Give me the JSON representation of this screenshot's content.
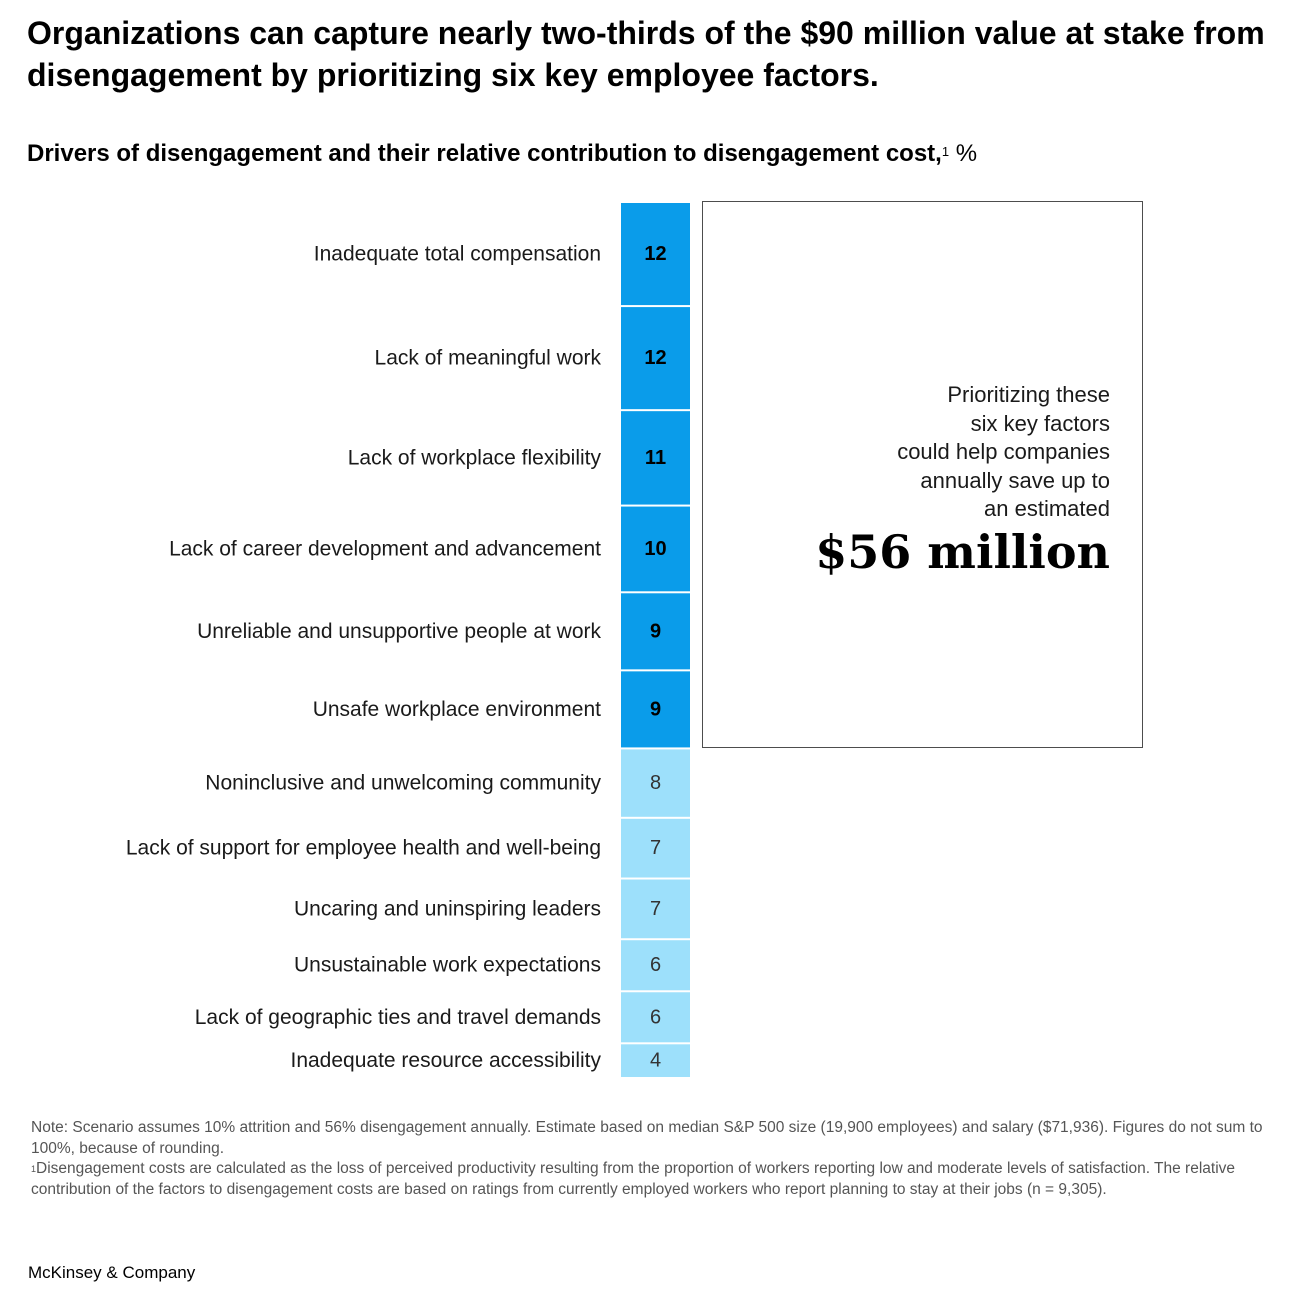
{
  "title": "Organizations can capture nearly two-thirds of the $90 million value at stake from disengagement by prioritizing six key employee factors.",
  "subtitle": {
    "text": "Drivers of disengagement and their relative contribution to disengagement cost,",
    "footnote_marker": "1",
    "unit": "%"
  },
  "chart_data": {
    "type": "bar",
    "orientation": "stacked-vertical",
    "categories": [
      "Inadequate total compensation",
      "Lack of meaningful work",
      "Lack of workplace flexibility",
      "Lack of career development and advancement",
      "Unreliable and unsupportive people at work",
      "Unsafe workplace environment",
      "Noninclusive and unwelcoming community",
      "Lack of support for employee health and well-being",
      "Uncaring and uninspiring leaders",
      "Unsustainable work expectations",
      "Lack of geographic ties and travel demands",
      "Inadequate resource accessibility"
    ],
    "values": [
      12,
      12,
      11,
      10,
      9,
      9,
      8,
      7,
      7,
      6,
      6,
      4
    ],
    "highlighted_count": 6,
    "colors": {
      "highlight": "#0a9cea",
      "rest": "#9de0fb",
      "separator": "#ffffff"
    }
  },
  "callout": {
    "text": "Prioritizing these\nsix key factors\ncould help companies\nannually save up to\nan estimated",
    "amount": "$56 million"
  },
  "notes": {
    "note": "Note: Scenario assumes 10% attrition and 56% disengagement annually. Estimate based on median S&P 500 size (19,900 employees) and salary ($71,936). Figures do not sum to 100%, because of rounding.",
    "footnote_marker": "1",
    "footnote": "Disengagement costs are calculated as the loss of perceived productivity resulting from the proportion of workers reporting low and moderate levels of satisfaction. The relative contribution of the factors to disengagement costs are based on ratings from currently employed workers who report planning to stay at their jobs (n = 9,305)."
  },
  "brand": "McKinsey & Company"
}
